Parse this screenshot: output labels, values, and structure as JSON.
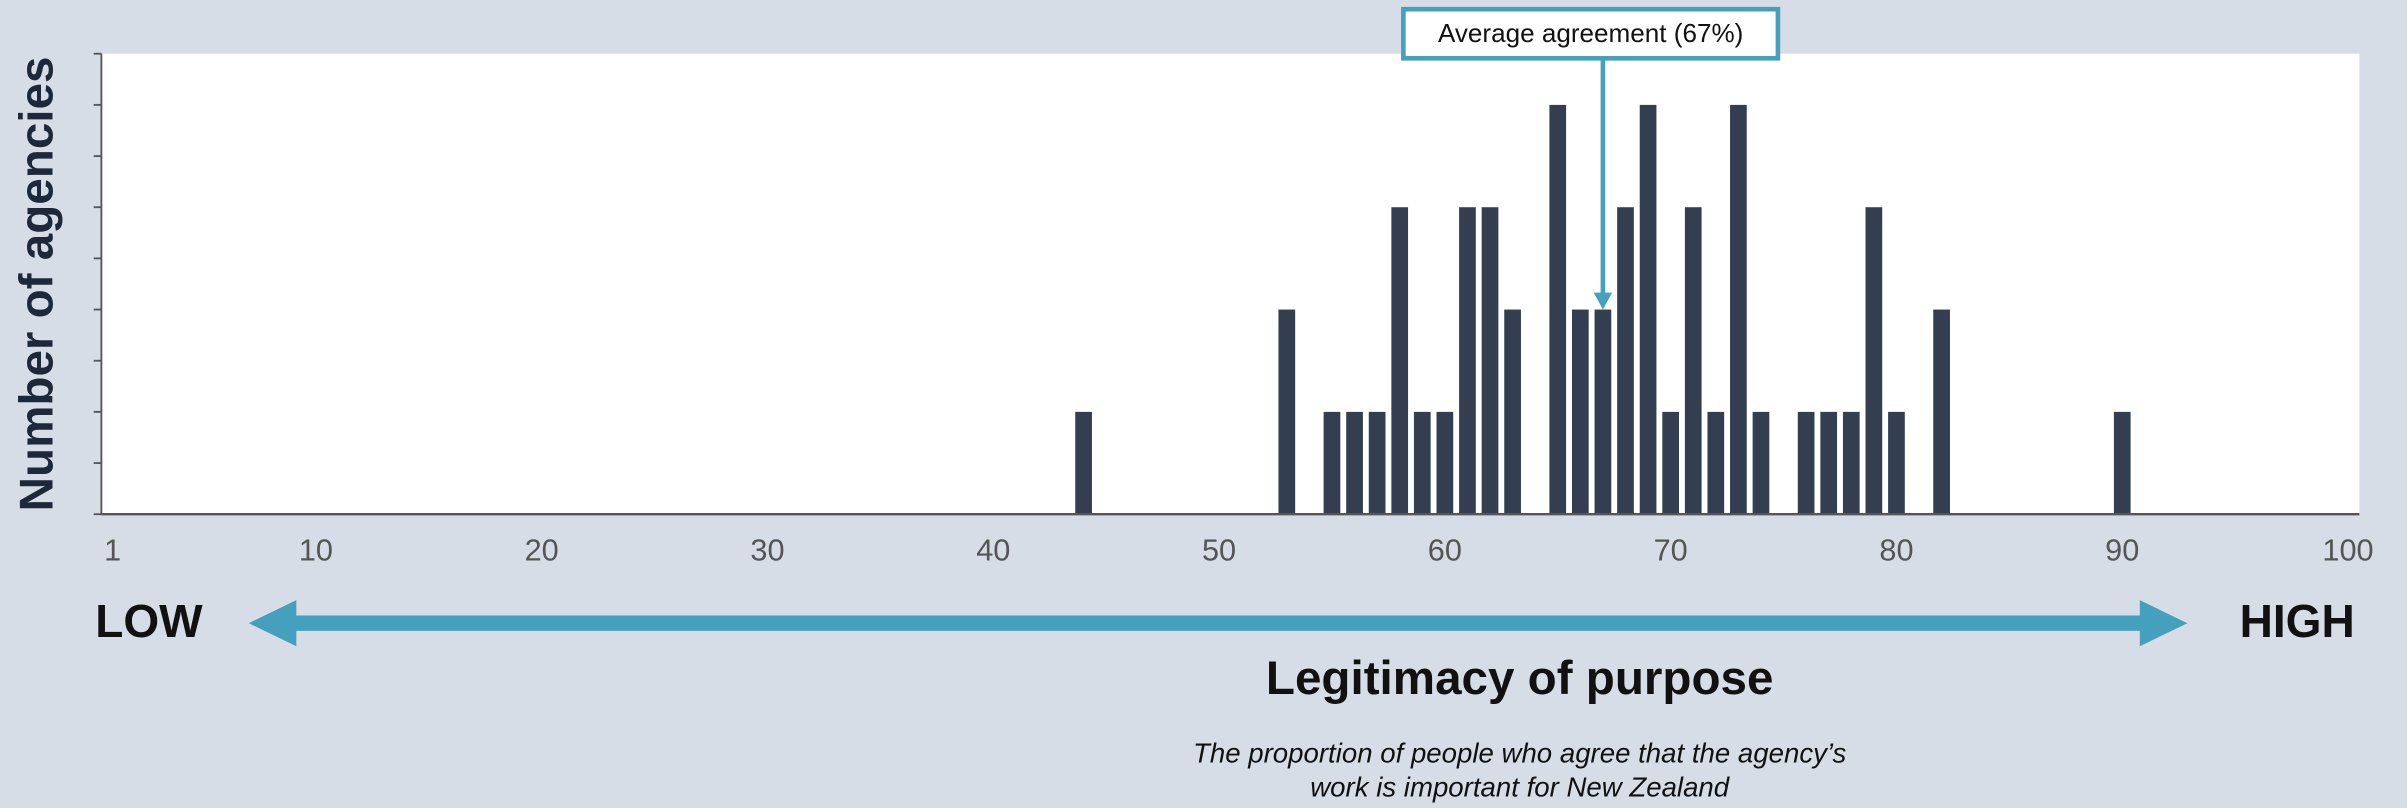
{
  "chart_data": {
    "type": "bar",
    "y_label": "Number of agencies",
    "x_label": "Legitimacy of purpose",
    "low_label": "LOW",
    "high_label": "HIGH",
    "caption": [
      "The proportion of people who agree that the agency’s",
      "work is important for New Zealand"
    ],
    "annotation": {
      "text": "Average agreement (67%)",
      "x": 67,
      "y": 2
    },
    "x": [
      44,
      53,
      55,
      56,
      57,
      58,
      59,
      60,
      61,
      62,
      63,
      65,
      66,
      67,
      68,
      69,
      70,
      71,
      72,
      73,
      74,
      76,
      77,
      78,
      79,
      80,
      82,
      90
    ],
    "values": [
      1,
      2,
      1,
      1,
      1,
      3,
      1,
      1,
      3,
      3,
      2,
      4,
      2,
      2,
      3,
      4,
      1,
      3,
      1,
      4,
      1,
      1,
      1,
      1,
      3,
      1,
      2,
      1
    ],
    "color": "#333f50",
    "xlim": [
      0.5,
      100.5
    ],
    "xticks": [
      1,
      10,
      20,
      30,
      40,
      50,
      60,
      70,
      80,
      90,
      100
    ],
    "ylim": [
      0,
      4.5
    ],
    "yticks": [
      0,
      0.5,
      1,
      1.5,
      2,
      2.5,
      3,
      3.5,
      4,
      4.5
    ],
    "grid": false
  }
}
